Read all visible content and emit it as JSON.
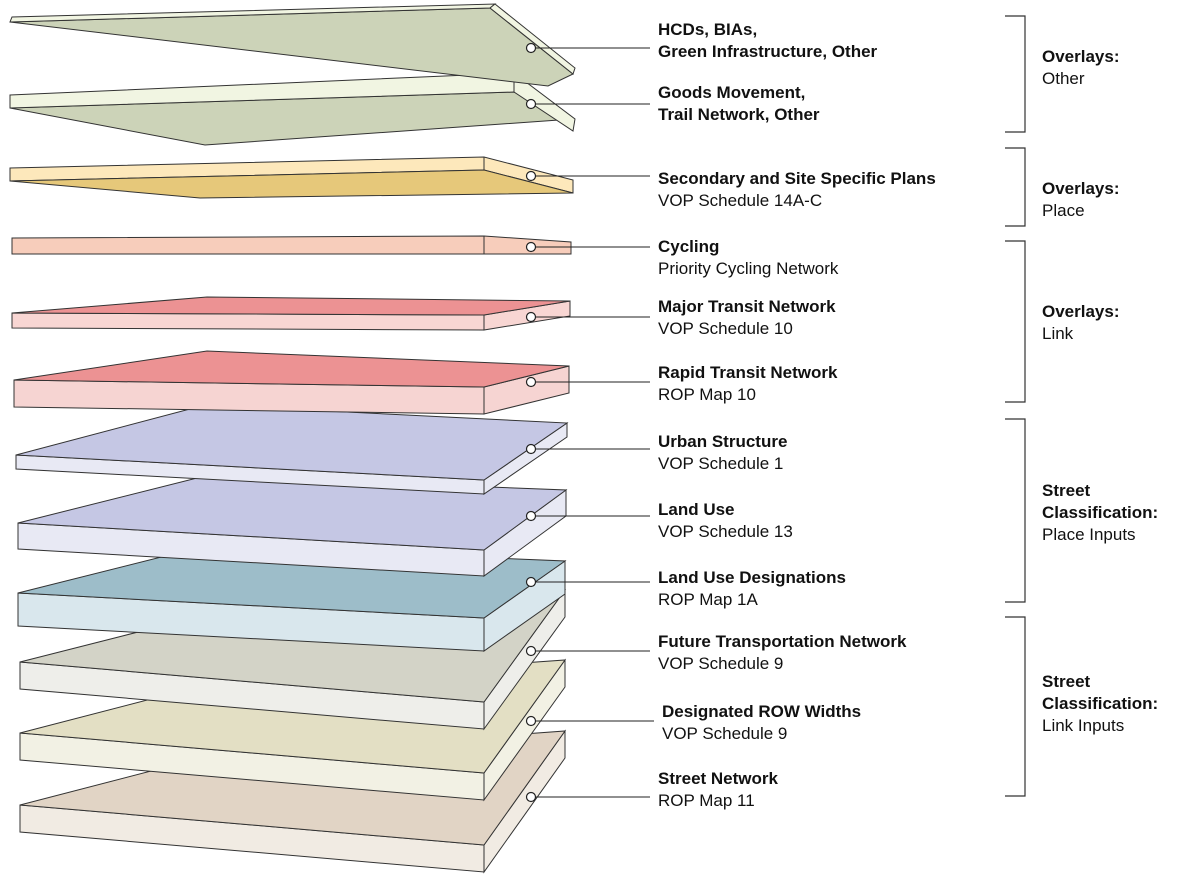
{
  "layers": [
    {
      "title_lines": [
        "HCDs, BIAs,",
        "Green Infrastructure, Other"
      ],
      "subtitle": "",
      "top": "#ccd3b8",
      "light": "#f1f5e2"
    },
    {
      "title_lines": [
        "Goods Movement,",
        "Trail Network, Other"
      ],
      "subtitle": "",
      "top": "#ccd3b8",
      "light": "#f1f5e2"
    },
    {
      "title_lines": [
        "Secondary and Site Specific Plans"
      ],
      "subtitle": "VOP Schedule 14A-C",
      "top": "#e6c87a",
      "light": "#fde8bb"
    },
    {
      "title_lines": [
        "Cycling"
      ],
      "subtitle": "Priority Cycling Network",
      "top": "#f4c3b1",
      "light": "#f7cdbb"
    },
    {
      "title_lines": [
        "Major Transit Network"
      ],
      "subtitle": "VOP Schedule 10",
      "top": "#ec9293",
      "light": "#f8d6d3"
    },
    {
      "title_lines": [
        "Rapid Transit Network"
      ],
      "subtitle": "ROP Map 10",
      "top": "#ec9293",
      "light": "#f6d4d2"
    },
    {
      "title_lines": [
        "Urban Structure"
      ],
      "subtitle": "VOP Schedule 1",
      "top": "#c5c7e4",
      "light": "#e8e9f4"
    },
    {
      "title_lines": [
        "Land Use"
      ],
      "subtitle": "VOP Schedule 13",
      "top": "#c5c7e4",
      "light": "#e8e9f4"
    },
    {
      "title_lines": [
        "Land Use Designations"
      ],
      "subtitle": "ROP Map 1A",
      "top": "#9dbdc9",
      "light": "#d9e7ed"
    },
    {
      "title_lines": [
        "Future Transportation Network"
      ],
      "subtitle": "VOP Schedule 9",
      "top": "#d3d3c7",
      "light": "#eeeeea"
    },
    {
      "title_lines": [
        "Designated ROW Widths"
      ],
      "subtitle": "VOP Schedule 9",
      "top": "#e3dfc4",
      "light": "#f2f1e4"
    },
    {
      "title_lines": [
        "Street Network"
      ],
      "subtitle": "ROP Map 11",
      "top": "#e1d4c5",
      "light": "#f1ebe3"
    }
  ],
  "groups": [
    {
      "title_lines": [
        "Overlays:"
      ],
      "subtitle": "Other"
    },
    {
      "title_lines": [
        "Overlays:"
      ],
      "subtitle": "Place"
    },
    {
      "title_lines": [
        "Overlays:"
      ],
      "subtitle": "Link"
    },
    {
      "title_lines": [
        "Street",
        "Classification:"
      ],
      "subtitle": "Place Inputs"
    },
    {
      "title_lines": [
        "Street",
        "Classification:"
      ],
      "subtitle": "Link Inputs"
    }
  ],
  "colors": {
    "outline": "#333333",
    "leader": "#222222",
    "bracket": "#333333"
  }
}
